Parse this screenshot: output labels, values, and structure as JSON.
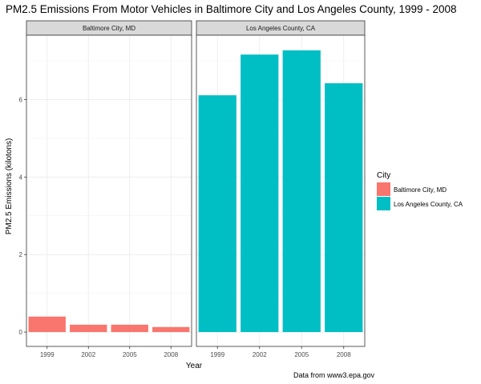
{
  "chart_data": {
    "type": "bar",
    "title": "PM2.5 Emissions From Motor Vehicles in Baltimore City and Los Angeles County, 1999 - 2008",
    "xlabel": "Year",
    "ylabel": "PM2.5 Emissions (kilotons)",
    "caption": "Data from www3.epa.gov",
    "categories": [
      "1999",
      "2002",
      "2005",
      "2008"
    ],
    "y_ticks": [
      0,
      2,
      4,
      6
    ],
    "ylim": [
      -0.37,
      7.66
    ],
    "grid": true,
    "legend": {
      "title": "City",
      "position": "right"
    },
    "series": [
      {
        "name": "Baltimore City, MD",
        "color": "#F8766D",
        "values": [
          0.4,
          0.19,
          0.19,
          0.13
        ]
      },
      {
        "name": "Los Angeles County, CA",
        "color": "#00BFC4",
        "values": [
          6.11,
          7.16,
          7.27,
          6.42
        ]
      }
    ]
  }
}
